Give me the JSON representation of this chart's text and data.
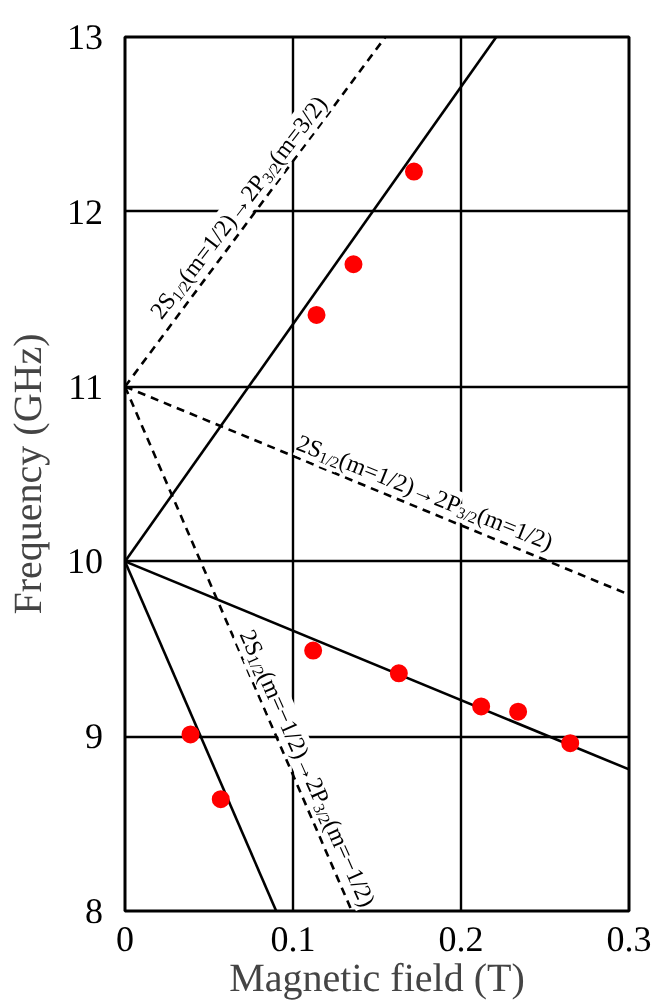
{
  "chart_data": {
    "type": "line",
    "xlabel": "Magnetic field (T)",
    "ylabel": "Frequency (GHz)",
    "xlim": [
      0,
      0.3
    ],
    "ylim": [
      8,
      13
    ],
    "xticks": [
      0,
      0.1,
      0.2,
      0.3
    ],
    "yticks": [
      8,
      9,
      10,
      11,
      12,
      13
    ],
    "grid": true,
    "series": [
      {
        "color": "#000000",
        "line_style": "solid",
        "x": [
          0,
          0.221
        ],
        "values": [
          10,
          13
        ]
      },
      {
        "color": "#000000",
        "line_style": "solid",
        "x": [
          0,
          0.3
        ],
        "values": [
          10,
          8.81
        ]
      },
      {
        "color": "#000000",
        "line_style": "solid",
        "x": [
          0,
          0.09
        ],
        "values": [
          10,
          8
        ]
      },
      {
        "color": "#000000",
        "line_style": "dashed",
        "x": [
          0,
          0.155
        ],
        "values": [
          11,
          13
        ]
      },
      {
        "color": "#000000",
        "line_style": "dashed",
        "x": [
          0,
          0.3
        ],
        "values": [
          11,
          9.81
        ]
      },
      {
        "color": "#000000",
        "line_style": "dashed",
        "x": [
          0,
          0.135
        ],
        "values": [
          11,
          8
        ]
      },
      {
        "type": "scatter",
        "color": "#ff0000",
        "marker": "circle",
        "x": [
          0.114,
          0.136,
          0.172,
          0.112,
          0.163,
          0.212,
          0.234,
          0.265,
          0.039,
          0.057
        ],
        "values": [
          11.41,
          11.7,
          12.23,
          9.49,
          9.36,
          9.17,
          9.14,
          8.96,
          9.01,
          8.64
        ]
      }
    ],
    "annotations": [
      {
        "text": "2S$_{1/2}$(m=1/2)→2P$_{3/2}$(m=3/2)",
        "x": 0.075,
        "y": 11.97
      },
      {
        "text": "2S$_{1/2}$(m=1/2)→2P$_{3/2}$(m=1/2)",
        "x": 0.175,
        "y": 10.31
      },
      {
        "text": "2S$_{1/2}$(m=−1/2)→2P$_{3/2}$(m=−1/2)",
        "x": 0.1,
        "y": 8.78
      }
    ]
  }
}
